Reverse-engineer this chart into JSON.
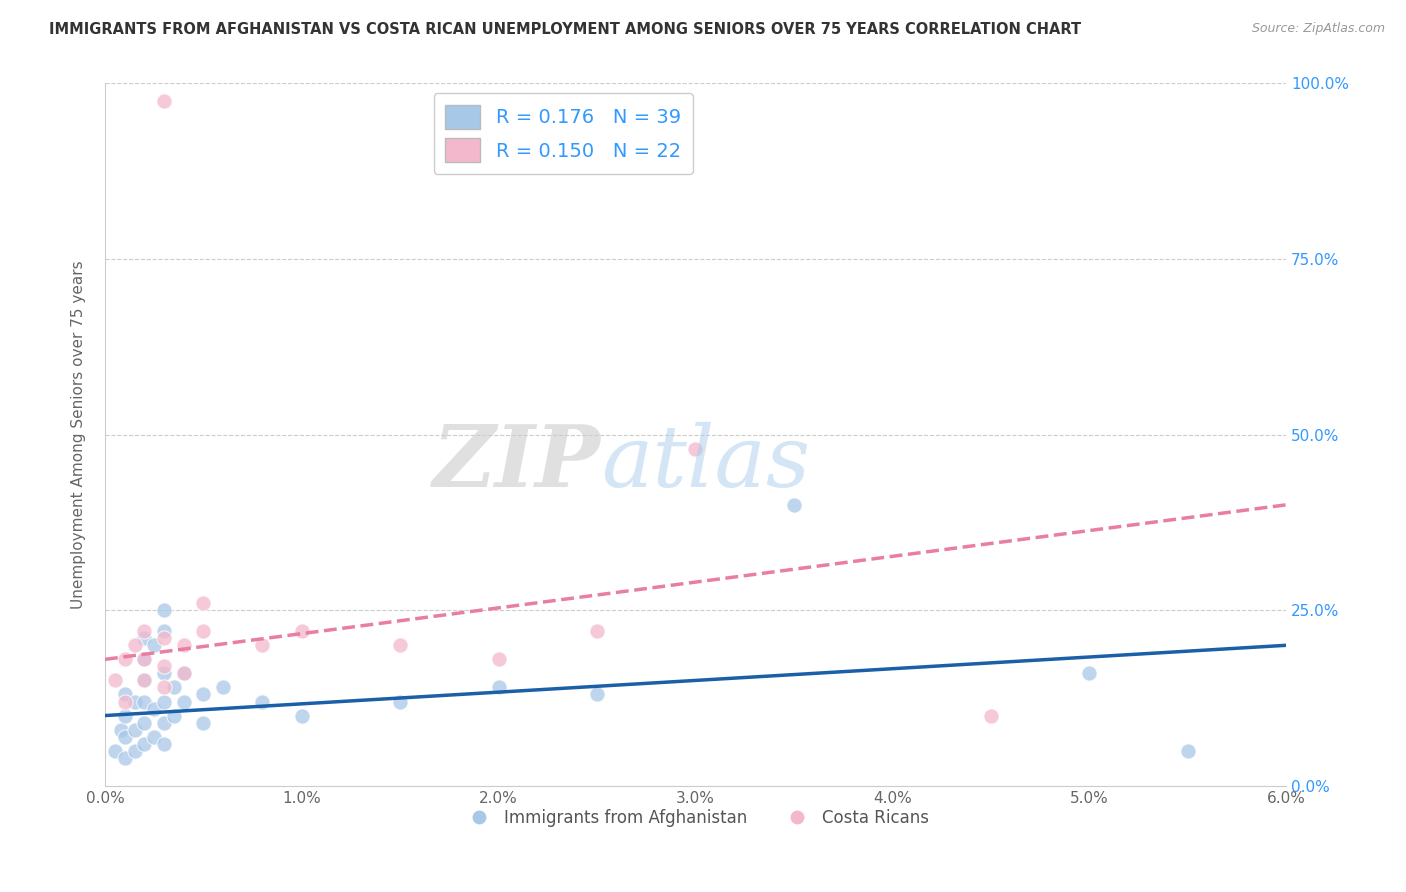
{
  "title": "IMMIGRANTS FROM AFGHANISTAN VS COSTA RICAN UNEMPLOYMENT AMONG SENIORS OVER 75 YEARS CORRELATION CHART",
  "source": "Source: ZipAtlas.com",
  "ylabel": "Unemployment Among Seniors over 75 years",
  "xmin": 0.0,
  "xmax": 0.06,
  "ymin": 0.0,
  "ymax": 1.0,
  "xtick_labels": [
    "0.0%",
    "1.0%",
    "2.0%",
    "3.0%",
    "4.0%",
    "5.0%",
    "6.0%"
  ],
  "xtick_values": [
    0.0,
    0.01,
    0.02,
    0.03,
    0.04,
    0.05,
    0.06
  ],
  "ytick_labels": [
    "0.0%",
    "25.0%",
    "50.0%",
    "75.0%",
    "100.0%"
  ],
  "ytick_values": [
    0.0,
    0.25,
    0.5,
    0.75,
    1.0
  ],
  "r_blue": 0.176,
  "n_blue": 39,
  "r_pink": 0.15,
  "n_pink": 22,
  "blue_color": "#a8c8e8",
  "pink_color": "#f4b8cc",
  "blue_line_color": "#1a5fa8",
  "pink_line_color": "#e87fa0",
  "legend_label_blue": "Immigrants from Afghanistan",
  "legend_label_pink": "Costa Ricans",
  "blue_scatter_x": [
    0.0005,
    0.0008,
    0.001,
    0.001,
    0.001,
    0.001,
    0.0015,
    0.0015,
    0.0015,
    0.002,
    0.002,
    0.002,
    0.002,
    0.002,
    0.002,
    0.0025,
    0.0025,
    0.0025,
    0.003,
    0.003,
    0.003,
    0.003,
    0.003,
    0.003,
    0.0035,
    0.0035,
    0.004,
    0.004,
    0.005,
    0.005,
    0.006,
    0.008,
    0.01,
    0.015,
    0.02,
    0.025,
    0.035,
    0.05,
    0.055
  ],
  "blue_scatter_y": [
    0.05,
    0.08,
    0.04,
    0.07,
    0.1,
    0.13,
    0.05,
    0.08,
    0.12,
    0.06,
    0.09,
    0.12,
    0.15,
    0.18,
    0.21,
    0.07,
    0.11,
    0.2,
    0.06,
    0.09,
    0.12,
    0.16,
    0.22,
    0.25,
    0.1,
    0.14,
    0.12,
    0.16,
    0.09,
    0.13,
    0.14,
    0.12,
    0.1,
    0.12,
    0.14,
    0.13,
    0.4,
    0.16,
    0.05
  ],
  "pink_scatter_x": [
    0.0005,
    0.001,
    0.001,
    0.0015,
    0.002,
    0.002,
    0.002,
    0.003,
    0.003,
    0.003,
    0.004,
    0.004,
    0.005,
    0.005,
    0.008,
    0.01,
    0.015,
    0.02,
    0.025,
    0.03,
    0.045,
    0.003
  ],
  "pink_scatter_y": [
    0.15,
    0.12,
    0.18,
    0.2,
    0.15,
    0.18,
    0.22,
    0.14,
    0.17,
    0.21,
    0.16,
    0.2,
    0.22,
    0.26,
    0.2,
    0.22,
    0.2,
    0.18,
    0.22,
    0.48,
    0.1,
    0.975
  ],
  "blue_trend_x0": 0.0,
  "blue_trend_x1": 0.06,
  "blue_trend_y0": 0.1,
  "blue_trend_y1": 0.2,
  "pink_trend_x0": 0.0,
  "pink_trend_x1": 0.06,
  "pink_trend_y0": 0.18,
  "pink_trend_y1": 0.4,
  "watermark_zip": "ZIP",
  "watermark_atlas": "atlas",
  "background_color": "#ffffff",
  "grid_color": "#cccccc"
}
